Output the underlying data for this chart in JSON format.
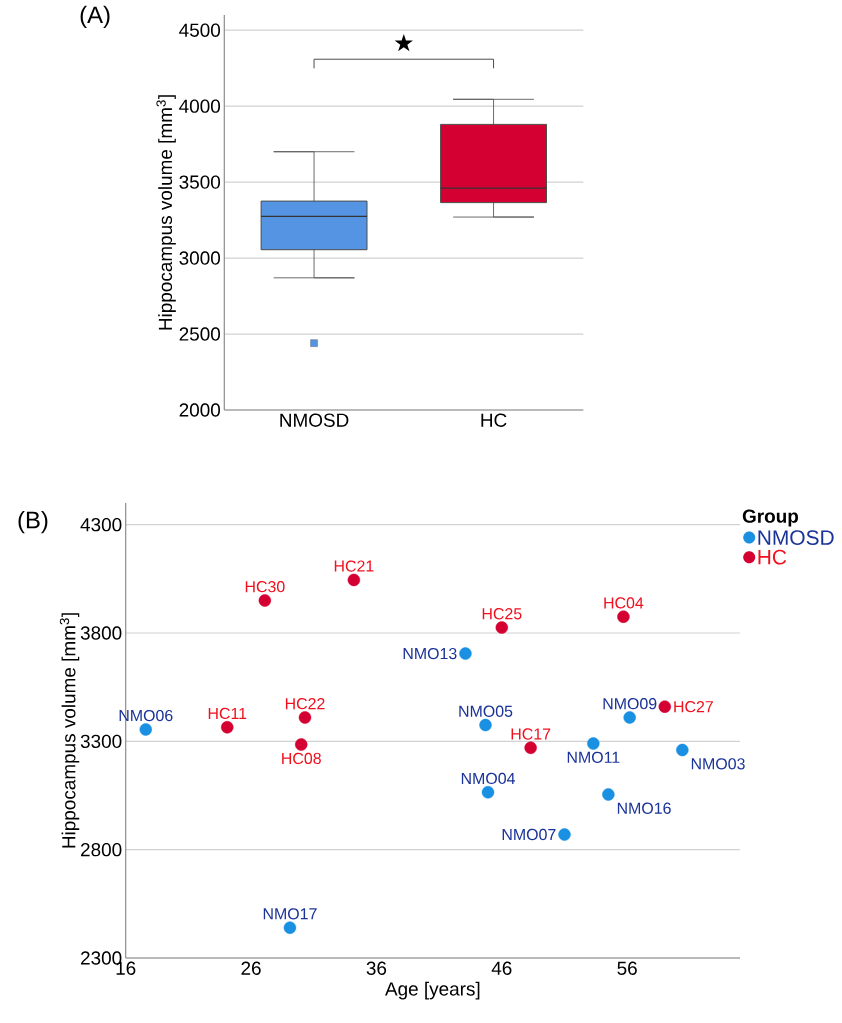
{
  "chart_data": [
    {
      "type": "box",
      "title": "(A)",
      "ylabel": "Hippocampus volume [mm$^{3}$]",
      "categories": [
        "NMOSD",
        "HC"
      ],
      "boxes": [
        {
          "low": 2870,
          "q1": 3055,
          "median": 3275,
          "q3": 3375,
          "high": 3700,
          "outliers": [
            2440
          ]
        },
        {
          "low": 3270,
          "q1": 3365,
          "median": 3460,
          "q3": 3880,
          "high": 4045
        }
      ],
      "colors": [
        "#5594e2",
        "#d50032"
      ],
      "ylim": [
        2000,
        4600
      ],
      "yticks": [
        2000,
        2500,
        3000,
        3500,
        4000,
        4500
      ],
      "grid": "y",
      "annotations": [
        "★"
      ]
    },
    {
      "type": "scatter",
      "title": "(B)",
      "xlabel": "Age [years]",
      "ylabel": "Hippocampus volume [mm$^{3}$]",
      "legend_title": "Group",
      "series": [
        {
          "name": "NMOSD",
          "color": "#1a90e3",
          "x": [
            17.6,
            43.1,
            44.7,
            44.9,
            51.0,
            53.3,
            56.2,
            54.5,
            60.4,
            29.1
          ],
          "values": [
            3355,
            3705,
            3375,
            3065,
            2870,
            3290,
            3410,
            3055,
            3260,
            2440
          ],
          "value_labels": [
            "NMO06",
            "NMO13",
            "NMO05",
            "NMO04",
            "NMO07",
            "NMO11",
            "NMO09",
            "NMO16",
            "NMO03",
            "NMO17"
          ]
        },
        {
          "name": "HC",
          "color": "#d50032",
          "x": [
            27.1,
            34.2,
            24.1,
            30.3,
            30.0,
            46.0,
            55.7,
            48.3,
            59.0
          ],
          "values": [
            3950,
            4045,
            3365,
            3410,
            3285,
            3825,
            3875,
            3270,
            3460
          ],
          "value_labels": [
            "HC30",
            "HC21",
            "HC11",
            "HC22",
            "HC08",
            "HC25",
            "HC04",
            "HC17",
            "HC27"
          ]
        }
      ],
      "xlim": [
        16,
        65
      ],
      "xticks": [
        16,
        26,
        36,
        46,
        56
      ],
      "ylim": [
        2300,
        4400
      ],
      "yticks": [
        2300,
        2800,
        3300,
        3800,
        4300
      ],
      "grid": "y",
      "legend": "top right",
      "marker": "circle"
    }
  ]
}
